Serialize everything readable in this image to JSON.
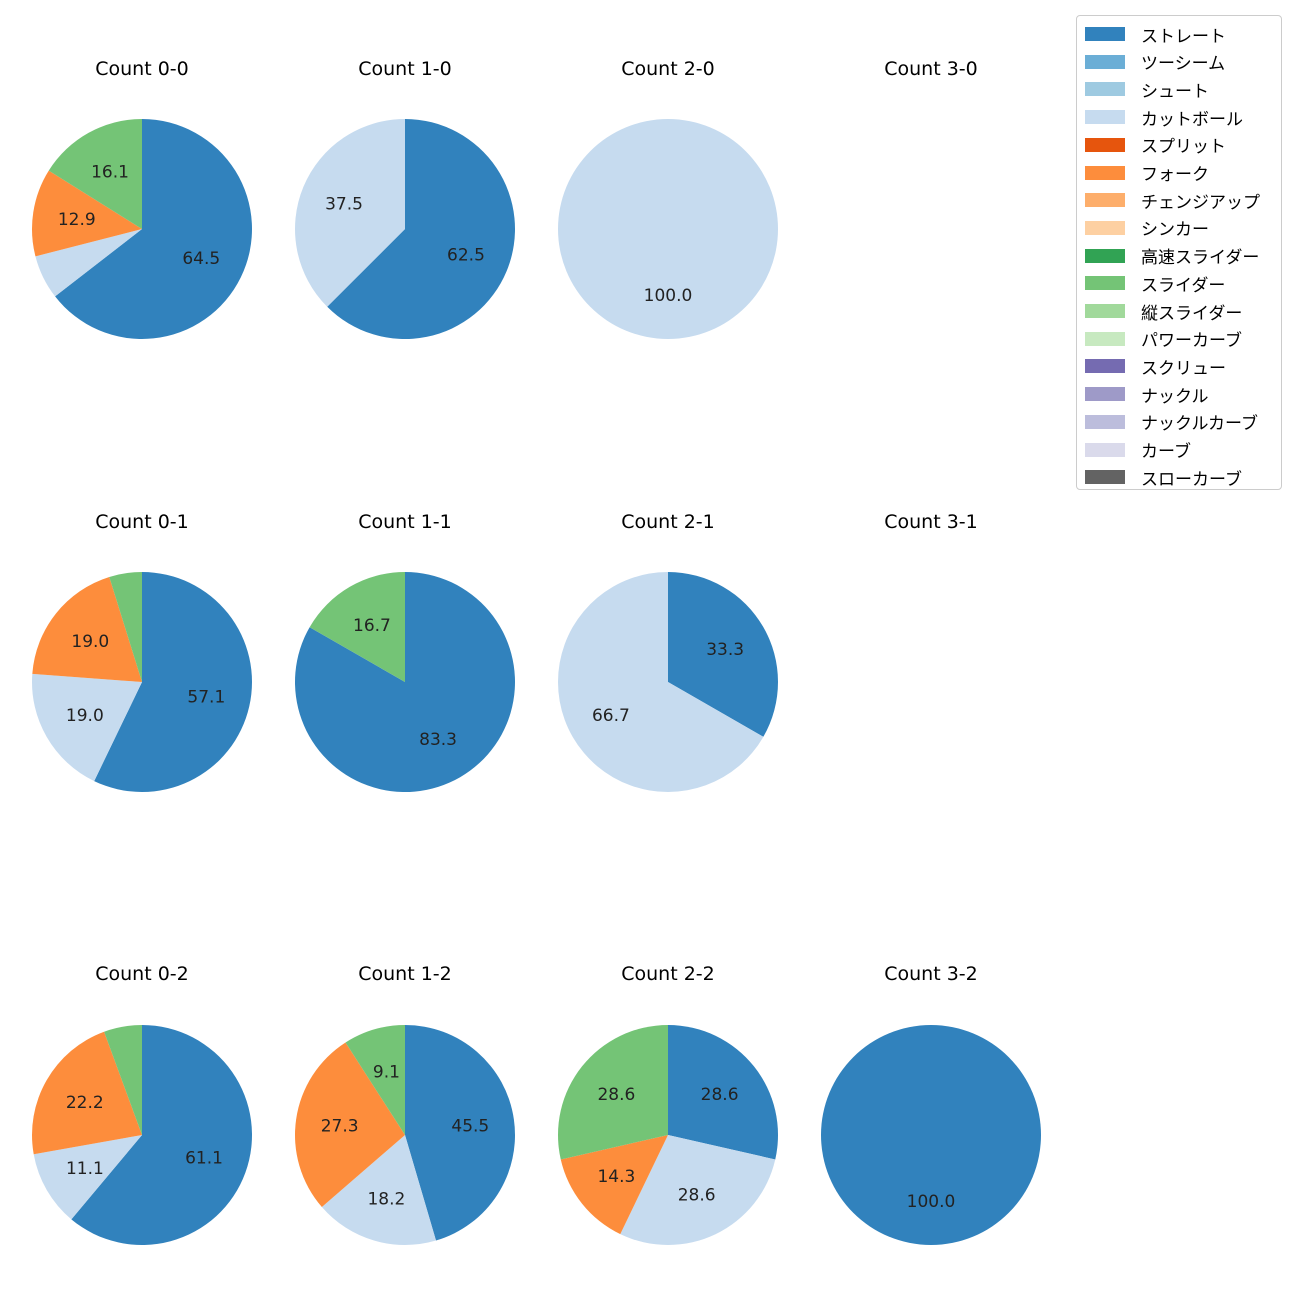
{
  "chart_data": {
    "type": "pie",
    "pitch_types": [
      {
        "name": "ストレート",
        "color": "#3182bd"
      },
      {
        "name": "ツーシーム",
        "color": "#6baed6"
      },
      {
        "name": "シュート",
        "color": "#9ecae1"
      },
      {
        "name": "カットボール",
        "color": "#c6dbef"
      },
      {
        "name": "スプリット",
        "color": "#e6550d"
      },
      {
        "name": "フォーク",
        "color": "#fd8d3c"
      },
      {
        "name": "チェンジアップ",
        "color": "#fdae6b"
      },
      {
        "name": "シンカー",
        "color": "#fdd0a2"
      },
      {
        "name": "高速スライダー",
        "color": "#31a354"
      },
      {
        "name": "スライダー",
        "color": "#74c476"
      },
      {
        "name": "縦スライダー",
        "color": "#a1d99b"
      },
      {
        "name": "パワーカーブ",
        "color": "#c7e9c0"
      },
      {
        "name": "スクリュー",
        "color": "#756bb1"
      },
      {
        "name": "ナックル",
        "color": "#9e9ac8"
      },
      {
        "name": "ナックルカーブ",
        "color": "#bcbddc"
      },
      {
        "name": "カーブ",
        "color": "#dadaeb"
      },
      {
        "name": "スローカーブ",
        "color": "#636363"
      }
    ],
    "charts": [
      {
        "title": "Count 0-0",
        "slices": [
          {
            "pitch": "ストレート",
            "value": 64.5,
            "label": "64.5"
          },
          {
            "pitch": "カットボール",
            "value": 6.5,
            "label": ""
          },
          {
            "pitch": "フォーク",
            "value": 12.9,
            "label": "12.9"
          },
          {
            "pitch": "スライダー",
            "value": 16.1,
            "label": "16.1"
          }
        ]
      },
      {
        "title": "Count 1-0",
        "slices": [
          {
            "pitch": "ストレート",
            "value": 62.5,
            "label": "62.5"
          },
          {
            "pitch": "カットボール",
            "value": 37.5,
            "label": "37.5"
          }
        ]
      },
      {
        "title": "Count 2-0",
        "slices": [
          {
            "pitch": "カットボール",
            "value": 100.0,
            "label": "100.0"
          }
        ]
      },
      {
        "title": "Count 3-0",
        "slices": []
      },
      {
        "title": "Count 0-1",
        "slices": [
          {
            "pitch": "ストレート",
            "value": 57.1,
            "label": "57.1"
          },
          {
            "pitch": "カットボール",
            "value": 19.0,
            "label": "19.0"
          },
          {
            "pitch": "フォーク",
            "value": 19.0,
            "label": "19.0"
          },
          {
            "pitch": "スライダー",
            "value": 4.8,
            "label": ""
          }
        ]
      },
      {
        "title": "Count 1-1",
        "slices": [
          {
            "pitch": "ストレート",
            "value": 83.3,
            "label": "83.3"
          },
          {
            "pitch": "スライダー",
            "value": 16.7,
            "label": "16.7"
          }
        ]
      },
      {
        "title": "Count 2-1",
        "slices": [
          {
            "pitch": "ストレート",
            "value": 33.3,
            "label": "33.3"
          },
          {
            "pitch": "カットボール",
            "value": 66.7,
            "label": "66.7"
          }
        ]
      },
      {
        "title": "Count 3-1",
        "slices": []
      },
      {
        "title": "Count 0-2",
        "slices": [
          {
            "pitch": "ストレート",
            "value": 61.1,
            "label": "61.1"
          },
          {
            "pitch": "カットボール",
            "value": 11.1,
            "label": "11.1"
          },
          {
            "pitch": "フォーク",
            "value": 22.2,
            "label": "22.2"
          },
          {
            "pitch": "スライダー",
            "value": 5.6,
            "label": ""
          }
        ]
      },
      {
        "title": "Count 1-2",
        "slices": [
          {
            "pitch": "ストレート",
            "value": 45.5,
            "label": "45.5"
          },
          {
            "pitch": "カットボール",
            "value": 18.2,
            "label": "18.2"
          },
          {
            "pitch": "フォーク",
            "value": 27.3,
            "label": "27.3"
          },
          {
            "pitch": "スライダー",
            "value": 9.1,
            "label": "9.1"
          }
        ]
      },
      {
        "title": "Count 2-2",
        "slices": [
          {
            "pitch": "ストレート",
            "value": 28.6,
            "label": "28.6"
          },
          {
            "pitch": "カットボール",
            "value": 28.6,
            "label": "28.6"
          },
          {
            "pitch": "フォーク",
            "value": 14.3,
            "label": "14.3"
          },
          {
            "pitch": "スライダー",
            "value": 28.6,
            "label": "28.6"
          }
        ]
      },
      {
        "title": "Count 3-2",
        "slices": [
          {
            "pitch": "ストレート",
            "value": 100.0,
            "label": "100.0"
          }
        ]
      }
    ]
  }
}
